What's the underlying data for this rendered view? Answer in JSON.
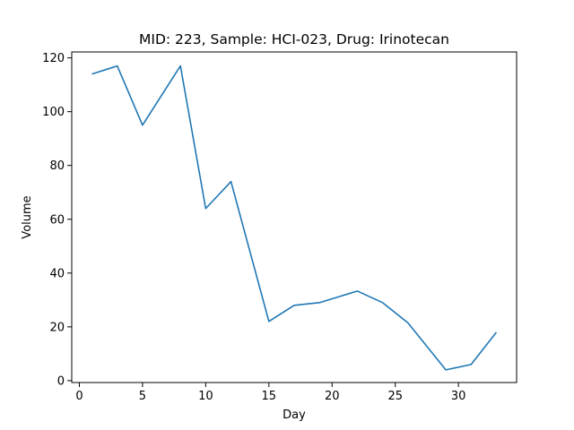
{
  "chart_data": {
    "type": "line",
    "title": "MID: 223, Sample: HCI-023, Drug: Irinotecan",
    "xlabel": "Day",
    "ylabel": "Volume",
    "xlim": [
      -0.6,
      34.6
    ],
    "ylim": [
      -0.7,
      122.2
    ],
    "xticks": [
      0,
      5,
      10,
      15,
      20,
      25,
      30
    ],
    "yticks": [
      0,
      20,
      40,
      60,
      80,
      100,
      120
    ],
    "grid": false,
    "line_color": "#1f77b4",
    "series": [
      {
        "x": [
          1,
          3,
          5,
          8,
          10,
          12,
          15,
          17,
          19,
          22,
          24,
          26,
          29,
          31,
          33
        ],
        "y": [
          114,
          117,
          95,
          117,
          64,
          74,
          22,
          28,
          29,
          33.3,
          29,
          21.5,
          4,
          6,
          18
        ]
      }
    ]
  }
}
